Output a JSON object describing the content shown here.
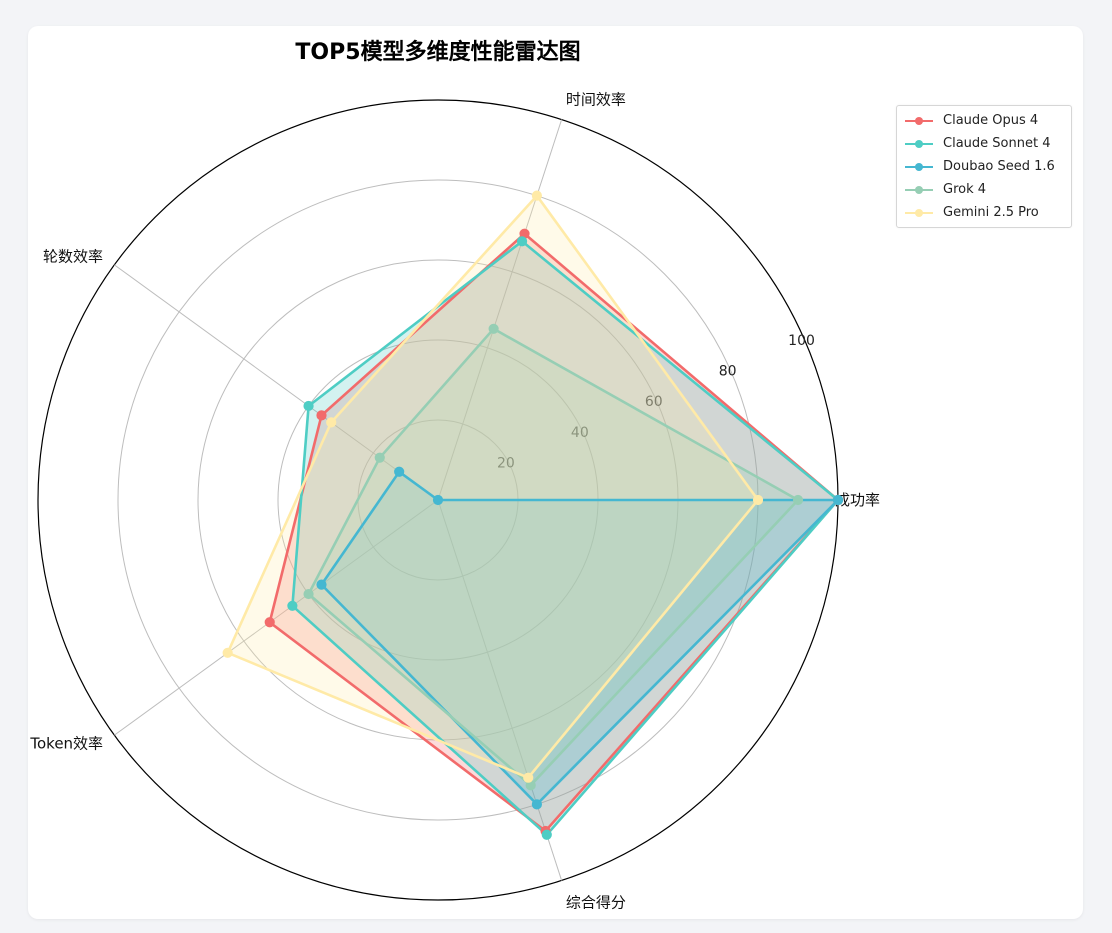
{
  "title": "TOP5模型多维度性能雷达图",
  "chart_data": {
    "type": "radar",
    "title": "TOP5模型多维度性能雷达图",
    "axes": [
      "成功率",
      "时间效率",
      "轮数效率",
      "Token效率",
      "综合得分"
    ],
    "rmax": 100,
    "rticks": [
      20,
      40,
      60,
      80,
      100
    ],
    "grid": true,
    "legend_position": "top-right",
    "series": [
      {
        "name": "Claude Opus 4",
        "color": "#f26b6b",
        "values": [
          100,
          70,
          36,
          52,
          87
        ]
      },
      {
        "name": "Claude Sonnet 4",
        "color": "#4ecdc4",
        "values": [
          100,
          68,
          40,
          45,
          88
        ]
      },
      {
        "name": "Doubao Seed 1.6",
        "color": "#45b7d1",
        "values": [
          100,
          0,
          12,
          36,
          80
        ]
      },
      {
        "name": "Grok 4",
        "color": "#96ceb4",
        "values": [
          90,
          45,
          18,
          40,
          75
        ]
      },
      {
        "name": "Gemini 2.5 Pro",
        "color": "#ffeaa7",
        "values": [
          80,
          80,
          33,
          65,
          73
        ]
      }
    ]
  }
}
